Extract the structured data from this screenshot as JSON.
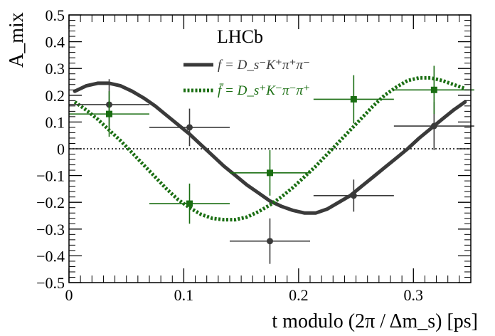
{
  "chart_data": {
    "type": "scatter",
    "title": "",
    "experiment_label": "LHCb",
    "xlabel": "t modulo (2π / Δm_s) [ps]",
    "ylabel": "A_mix",
    "xlim": [
      0,
      0.35
    ],
    "ylim": [
      -0.5,
      0.5
    ],
    "x_ticks": [
      0,
      0.1,
      0.2,
      0.3
    ],
    "x_tick_labels": [
      "0",
      "0.1",
      "0.2",
      "0.3"
    ],
    "y_ticks": [
      -0.5,
      -0.4,
      -0.3,
      -0.2,
      -0.1,
      0,
      0.1,
      0.2,
      0.3,
      0.4,
      0.5
    ],
    "y_tick_labels": [
      "−0.5",
      "−0.4",
      "−0.3",
      "−0.2",
      "−0.1",
      "0",
      "0.1",
      "0.2",
      "0.3",
      "0.4",
      "0.5"
    ],
    "grid": false,
    "zero_line": true,
    "legend_position": "top-center",
    "series": [
      {
        "name": "f = D_s⁻K⁺π⁺π⁻",
        "color": "#3a3a3a",
        "marker": "circle",
        "points": [
          {
            "x": 0.035,
            "y": 0.165,
            "xerr": 0.035,
            "yerr": 0.095
          },
          {
            "x": 0.105,
            "y": 0.08,
            "xerr": 0.035,
            "yerr": 0.07
          },
          {
            "x": 0.175,
            "y": -0.345,
            "xerr": 0.035,
            "yerr": 0.085
          },
          {
            "x": 0.248,
            "y": -0.175,
            "xerr": 0.035,
            "yerr": 0.06
          },
          {
            "x": 0.318,
            "y": 0.085,
            "xerr": 0.035,
            "yerr": 0.09
          }
        ],
        "curve": {
          "x": [
            0.005,
            0.015,
            0.025,
            0.035,
            0.045,
            0.055,
            0.065,
            0.075,
            0.085,
            0.095,
            0.105,
            0.115,
            0.125,
            0.135,
            0.145,
            0.155,
            0.165,
            0.175,
            0.185,
            0.195,
            0.205,
            0.215,
            0.225,
            0.235,
            0.245,
            0.255,
            0.265,
            0.275,
            0.285,
            0.295,
            0.305,
            0.315,
            0.325,
            0.335,
            0.345
          ],
          "y": [
            0.215,
            0.235,
            0.245,
            0.245,
            0.235,
            0.215,
            0.19,
            0.16,
            0.125,
            0.09,
            0.055,
            0.015,
            -0.025,
            -0.065,
            -0.1,
            -0.135,
            -0.165,
            -0.195,
            -0.215,
            -0.23,
            -0.24,
            -0.24,
            -0.225,
            -0.2,
            -0.175,
            -0.14,
            -0.105,
            -0.07,
            -0.035,
            0.0,
            0.04,
            0.075,
            0.11,
            0.145,
            0.175
          ]
        }
      },
      {
        "name": "f̄ = D_s⁺K⁻π⁻π⁺",
        "color": "#1a6e12",
        "marker": "square",
        "points": [
          {
            "x": 0.035,
            "y": 0.13,
            "xerr": 0.035,
            "yerr": 0.085
          },
          {
            "x": 0.105,
            "y": -0.205,
            "xerr": 0.035,
            "yerr": 0.075
          },
          {
            "x": 0.175,
            "y": -0.09,
            "xerr": 0.035,
            "yerr": 0.085
          },
          {
            "x": 0.248,
            "y": 0.185,
            "xerr": 0.035,
            "yerr": 0.09
          },
          {
            "x": 0.318,
            "y": 0.22,
            "xerr": 0.035,
            "yerr": 0.09
          }
        ],
        "curve": {
          "x": [
            0.005,
            0.015,
            0.025,
            0.035,
            0.045,
            0.055,
            0.065,
            0.075,
            0.085,
            0.095,
            0.105,
            0.115,
            0.125,
            0.135,
            0.145,
            0.155,
            0.165,
            0.175,
            0.185,
            0.195,
            0.205,
            0.215,
            0.225,
            0.235,
            0.245,
            0.255,
            0.265,
            0.275,
            0.285,
            0.295,
            0.305,
            0.315,
            0.325,
            0.335,
            0.345
          ],
          "y": [
            0.175,
            0.145,
            0.11,
            0.07,
            0.03,
            -0.015,
            -0.06,
            -0.105,
            -0.15,
            -0.19,
            -0.22,
            -0.245,
            -0.26,
            -0.265,
            -0.265,
            -0.255,
            -0.235,
            -0.21,
            -0.18,
            -0.145,
            -0.105,
            -0.065,
            -0.02,
            0.025,
            0.07,
            0.115,
            0.16,
            0.2,
            0.23,
            0.255,
            0.265,
            0.265,
            0.255,
            0.24,
            0.225
          ]
        }
      }
    ]
  }
}
